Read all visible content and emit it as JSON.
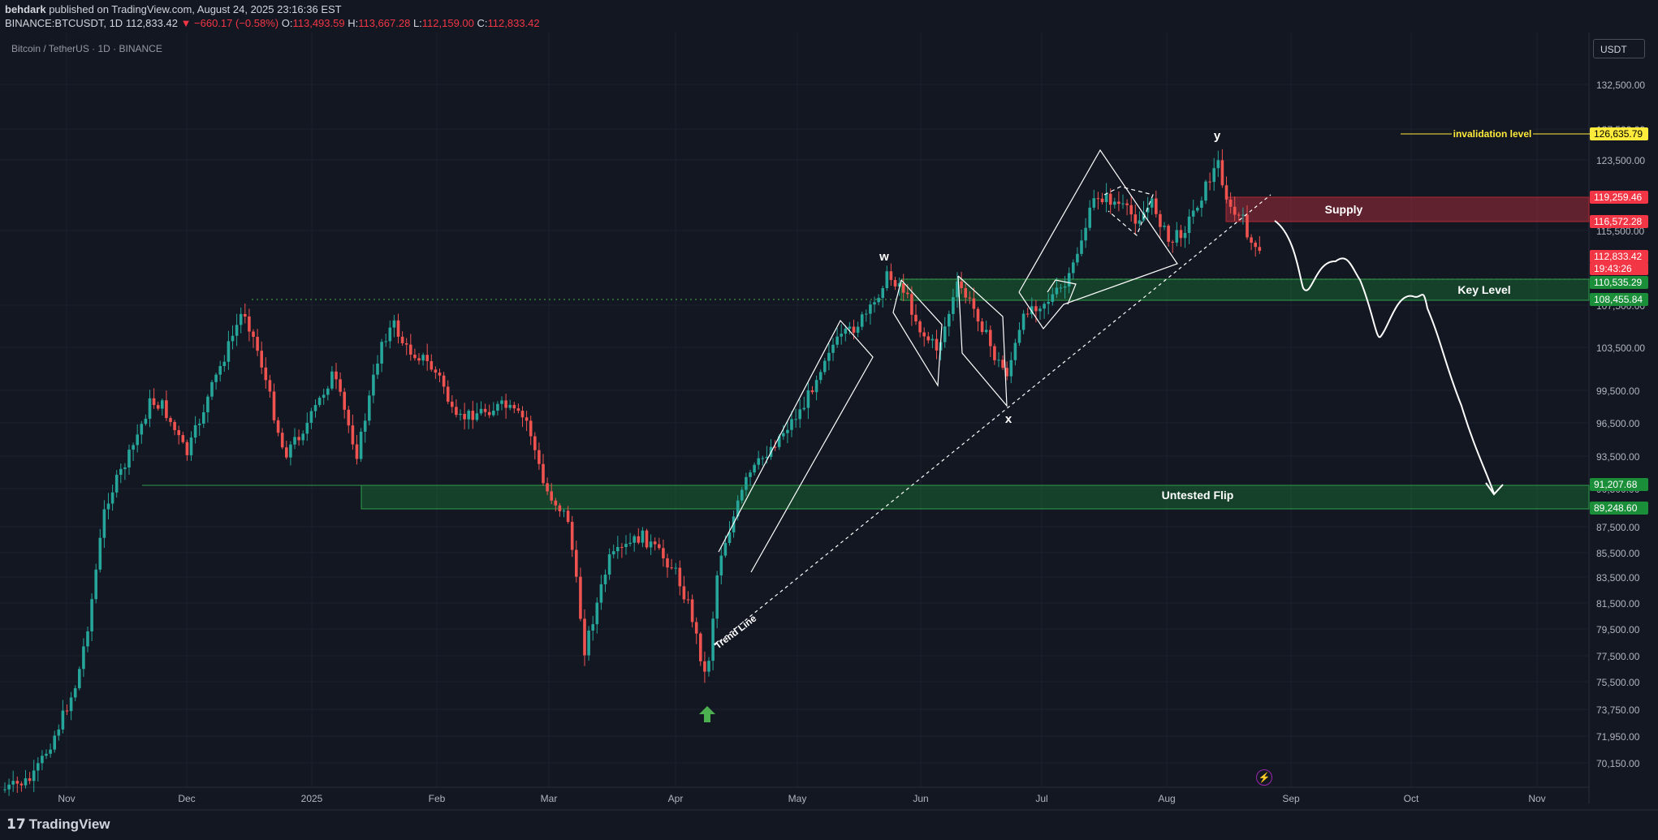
{
  "header": {
    "publisher": "behdark",
    "published_text": "published on TradingView.com, August 24, 2025 23:16:36 EST",
    "symbol": "BINANCE:BTCUSDT, 1D",
    "last": "112,833.42",
    "change": "▼ −660.17 (−0.58%)",
    "o_label": "O:",
    "o": "113,493.59",
    "h_label": "H:",
    "h": "113,667.28",
    "l_label": "L:",
    "l": "112,159.00",
    "c_label": "C:",
    "c": "112,833.42"
  },
  "symbol_title": "Bitcoin / TetherUS · 1D · BINANCE",
  "currency": "USDT",
  "brand": "TradingView",
  "colors": {
    "background": "#131722",
    "up": "#26a69a",
    "down": "#ef5350",
    "supply": "#f23645",
    "demand": "#1b8e3a",
    "invalidation": "#ffeb3b"
  },
  "chart_data": {
    "type": "candlestick",
    "symbol": "BINANCE:BTCUSDT",
    "interval": "1D",
    "y_axis_ticks": [
      "132,500.00",
      "127,500.00",
      "123,500.00",
      "115,500.00",
      "107,500.00",
      "103,500.00",
      "99,500.00",
      "96,500.00",
      "93,500.00",
      "90,500.00",
      "87,500.00",
      "85,500.00",
      "83,500.00",
      "81,500.00",
      "79,500.00",
      "77,500.00",
      "75,500.00",
      "73,750.00",
      "71,950.00",
      "70,150.00"
    ],
    "x_axis_ticks": [
      "Nov",
      "Dec",
      "2025",
      "Feb",
      "Mar",
      "Apr",
      "May",
      "Jun",
      "Jul",
      "Aug",
      "Sep",
      "Oct",
      "Nov"
    ],
    "price_labels": [
      {
        "text": "126,635.79",
        "kind": "invalidation"
      },
      {
        "text": "119,259.46",
        "kind": "supply"
      },
      {
        "text": "116,572.28",
        "kind": "supply"
      },
      {
        "text": "112,833.42",
        "kind": "last"
      },
      {
        "text": "19:43:26",
        "kind": "countdown"
      },
      {
        "text": "110,535.29",
        "kind": "demand"
      },
      {
        "text": "108,455.84",
        "kind": "demand"
      },
      {
        "text": "91,207.68",
        "kind": "demand"
      },
      {
        "text": "89,248.60",
        "kind": "demand"
      }
    ],
    "zones": [
      {
        "label": "Supply",
        "top": 119259.46,
        "bottom": 116572.28,
        "color": "#f23645"
      },
      {
        "label": "Key Level",
        "top": 110535.29,
        "bottom": 108455.84,
        "color": "#1b8e3a"
      },
      {
        "label": "Untested Flip",
        "top": 91207.68,
        "bottom": 89248.6,
        "color": "#1b8e3a"
      }
    ],
    "annotations": [
      "invalidation level",
      "w",
      "x",
      "y",
      "Trend Line"
    ],
    "invalidation_level": 126635.79
  }
}
